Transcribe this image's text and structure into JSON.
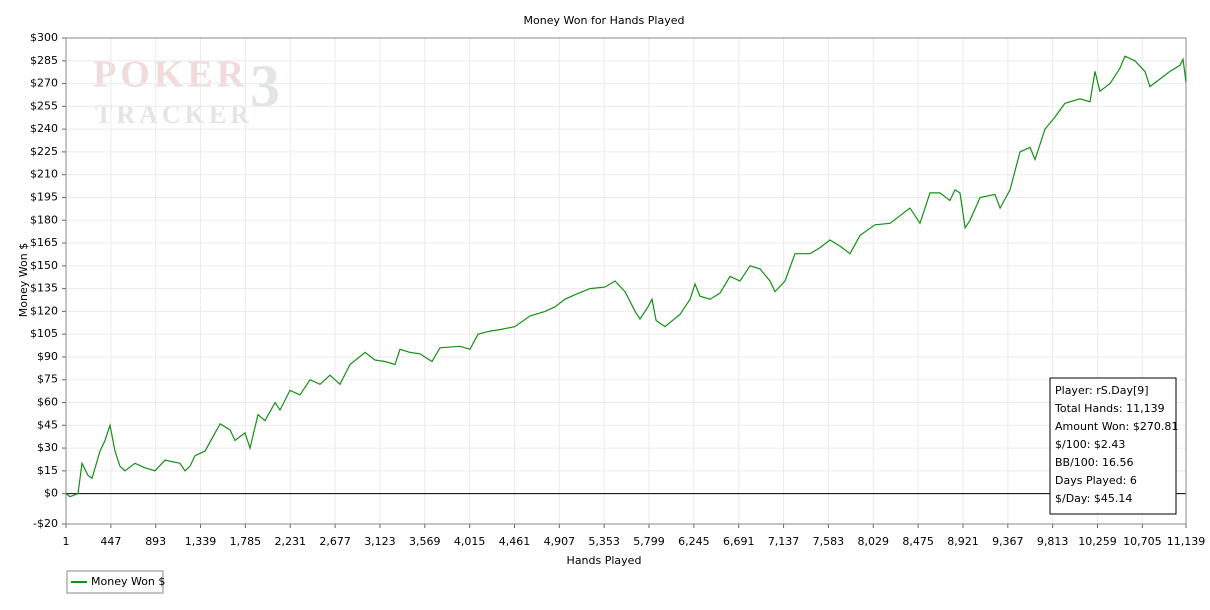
{
  "chart_data": {
    "type": "line",
    "title": "Money Won for Hands Played",
    "x_label": "Hands Played",
    "y_label": "Money Won $",
    "watermark": [
      "POKER",
      "TRACKER",
      "3"
    ],
    "x": [
      1,
      41,
      120,
      160,
      220,
      260,
      339,
      389,
      439,
      488,
      538,
      588,
      687,
      787,
      886,
      986,
      1135,
      1184,
      1234,
      1284,
      1383,
      1533,
      1632,
      1682,
      1781,
      1831,
      1910,
      1980,
      2080,
      2129,
      2229,
      2328,
      2428,
      2527,
      2626,
      2726,
      2825,
      2975,
      3074,
      3173,
      3273,
      3323,
      3422,
      3522,
      3641,
      3720,
      3919,
      4019,
      4098,
      4218,
      4317,
      4466,
      4615,
      4765,
      4864,
      4964,
      5063,
      5212,
      5361,
      5461,
      5560,
      5660,
      5709,
      5789,
      5829,
      5869,
      5958,
      6107,
      6207,
      6256,
      6306,
      6406,
      6505,
      6604,
      6704,
      6803,
      6903,
      7002,
      7052,
      7151,
      7251,
      7400,
      7500,
      7599,
      7698,
      7798,
      7897,
      8046,
      8196,
      8295,
      8394,
      8494,
      8593,
      8692,
      8791,
      8842,
      8892,
      8942,
      8991,
      9091,
      9240,
      9290,
      9389,
      9488,
      9588,
      9637,
      9737,
      9836,
      9936,
      10085,
      10184,
      10234,
      10283,
      10383,
      10482,
      10532,
      10631,
      10731,
      10780,
      10880,
      10979,
      11079,
      11109,
      11139
    ],
    "series": [
      {
        "name": "Money Won $",
        "color": "#159015",
        "values": [
          0,
          -2,
          0,
          20,
          12,
          10,
          28,
          35,
          45,
          28,
          18,
          15,
          20,
          17,
          15,
          22,
          20,
          15,
          18,
          25,
          28,
          46,
          42,
          35,
          40,
          30,
          52,
          48,
          60,
          55,
          68,
          65,
          75,
          72,
          78,
          72,
          85,
          93,
          88,
          87,
          85,
          95,
          93,
          92,
          87,
          96,
          97,
          95,
          105,
          107,
          108,
          110,
          117,
          120,
          123,
          128,
          131,
          135,
          136,
          140,
          133,
          120,
          115,
          123,
          128,
          114,
          110,
          118,
          128,
          138,
          130,
          128,
          132,
          143,
          140,
          150,
          148,
          140,
          133,
          140,
          158,
          158,
          162,
          167,
          163,
          158,
          170,
          177,
          178,
          183,
          188,
          178,
          198,
          198,
          193,
          200,
          198,
          175,
          180,
          195,
          197,
          188,
          200,
          225,
          228,
          220,
          240,
          248,
          257,
          260,
          258,
          278,
          265,
          270,
          280,
          288,
          285,
          278,
          268,
          273,
          278,
          282,
          286,
          271
        ]
      }
    ],
    "xlim": [
      1,
      11139
    ],
    "ylim": [
      -20,
      300
    ],
    "xticks": [
      1,
      447,
      893,
      {
        "value": 1339,
        "label": "1,339"
      },
      {
        "value": 1785,
        "label": "1,785"
      },
      {
        "value": 2231,
        "label": "2,231"
      },
      {
        "value": 2677,
        "label": "2,677"
      },
      {
        "value": 3123,
        "label": "3,123"
      },
      {
        "value": 3569,
        "label": "3,569"
      },
      {
        "value": 4015,
        "label": "4,015"
      },
      {
        "value": 4461,
        "label": "4,461"
      },
      {
        "value": 4907,
        "label": "4,907"
      },
      {
        "value": 5353,
        "label": "5,353"
      },
      {
        "value": 5799,
        "label": "5,799"
      },
      {
        "value": 6245,
        "label": "6,245"
      },
      {
        "value": 6691,
        "label": "6,691"
      },
      {
        "value": 7137,
        "label": "7,137"
      },
      {
        "value": 7583,
        "label": "7,583"
      },
      {
        "value": 8029,
        "label": "8,029"
      },
      {
        "value": 8475,
        "label": "8,475"
      },
      {
        "value": 8921,
        "label": "8,921"
      },
      {
        "value": 9367,
        "label": "9,367"
      },
      {
        "value": 9813,
        "label": "9,813"
      },
      {
        "value": 10259,
        "label": "10,259"
      },
      {
        "value": 10705,
        "label": "10,705"
      },
      {
        "value": 11139,
        "label": "11,139"
      }
    ],
    "yticks": [
      {
        "value": -20,
        "label": "-$20"
      },
      {
        "value": 0,
        "label": "$0"
      },
      {
        "value": 15,
        "label": "$15"
      },
      {
        "value": 30,
        "label": "$30"
      },
      {
        "value": 45,
        "label": "$45"
      },
      {
        "value": 60,
        "label": "$60"
      },
      {
        "value": 75,
        "label": "$75"
      },
      {
        "value": 90,
        "label": "$90"
      },
      {
        "value": 105,
        "label": "$105"
      },
      {
        "value": 120,
        "label": "$120"
      },
      {
        "value": 135,
        "label": "$135"
      },
      {
        "value": 150,
        "label": "$150"
      },
      {
        "value": 165,
        "label": "$165"
      },
      {
        "value": 180,
        "label": "$180"
      },
      {
        "value": 195,
        "label": "$195"
      },
      {
        "value": 210,
        "label": "$210"
      },
      {
        "value": 225,
        "label": "$225"
      },
      {
        "value": 240,
        "label": "$240"
      },
      {
        "value": 255,
        "label": "$255"
      },
      {
        "value": 270,
        "label": "$270"
      },
      {
        "value": 285,
        "label": "$285"
      },
      {
        "value": 300,
        "label": "$300"
      }
    ],
    "grid": true,
    "stats": [
      "Player: rS.Day[9]",
      "Total Hands: 11,139",
      "Amount Won: $270.81",
      "$/100: $2.43",
      "BB/100: 16.56",
      "Days Played: 6",
      "$/Day: $45.14"
    ]
  }
}
